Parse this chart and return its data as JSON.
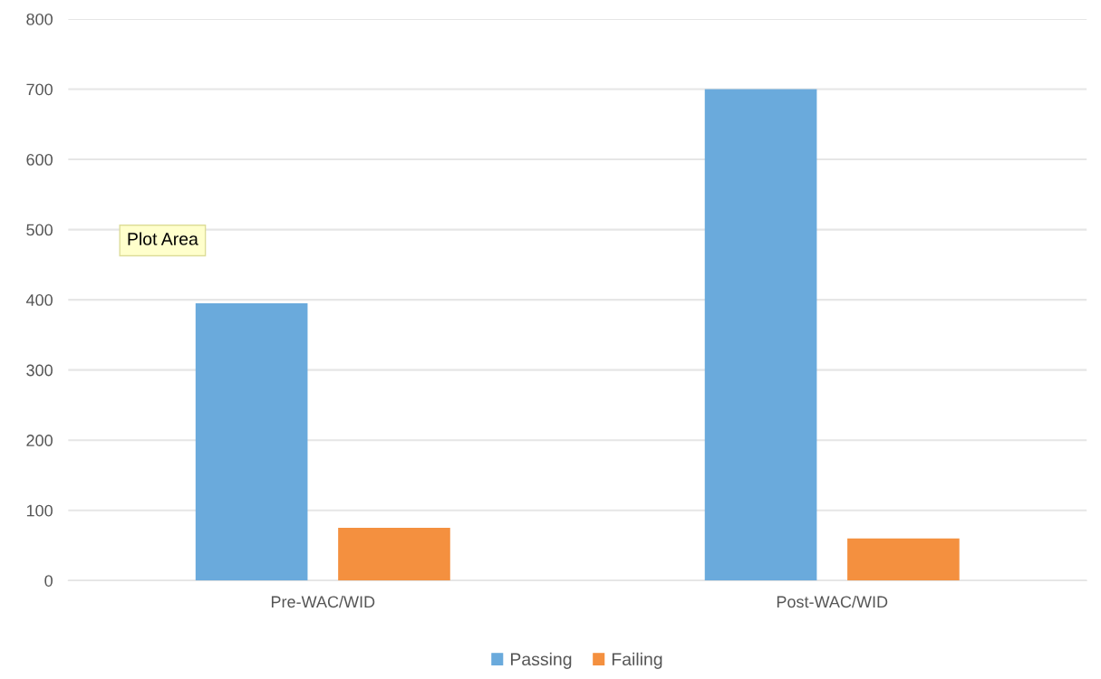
{
  "chart_data": {
    "type": "bar",
    "categories": [
      "Pre-WAC/WID",
      "Post-WAC/WID"
    ],
    "series": [
      {
        "name": "Passing",
        "color": "#6aaadc",
        "values": [
          395,
          700
        ]
      },
      {
        "name": "Failing",
        "color": "#f4903f",
        "values": [
          75,
          60
        ]
      }
    ],
    "ylim": [
      0,
      800
    ],
    "yticks": [
      0,
      100,
      200,
      300,
      400,
      500,
      600,
      700,
      800
    ],
    "grid": "y",
    "legend": "bottom",
    "annotations": [
      "Plot Area"
    ]
  }
}
